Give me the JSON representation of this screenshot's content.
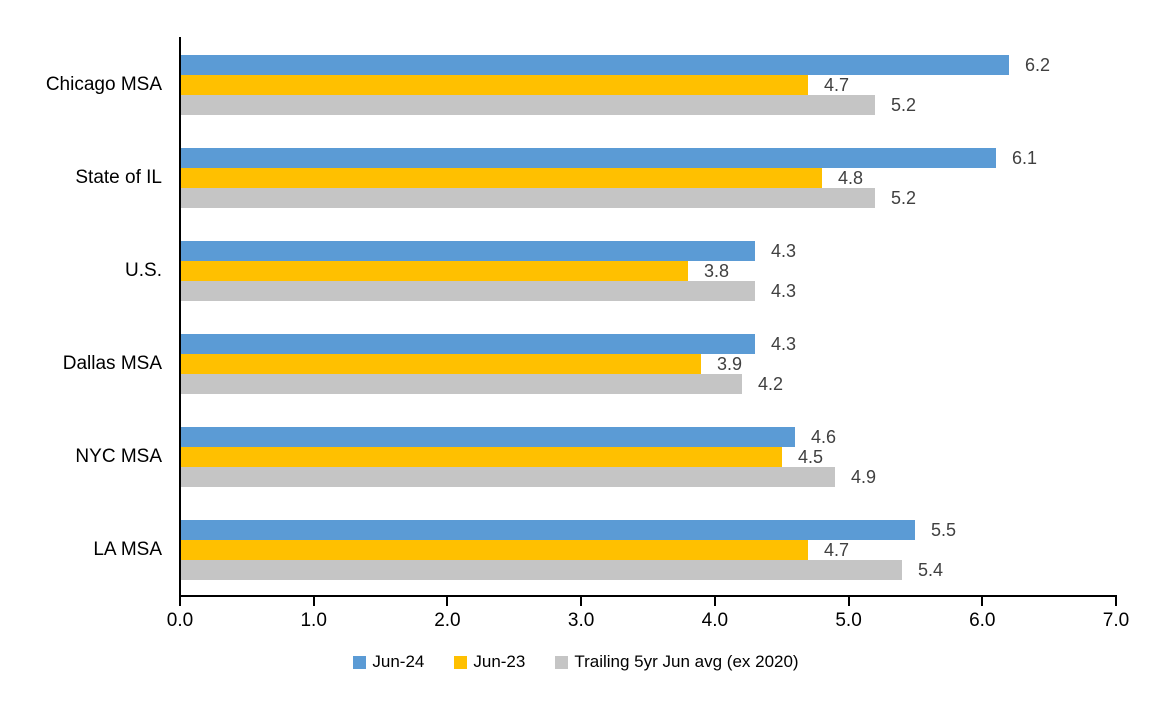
{
  "chart_data": {
    "type": "bar",
    "orientation": "horizontal",
    "title": "",
    "categories": [
      "Chicago MSA",
      "State of IL",
      "U.S.",
      "Dallas MSA",
      "NYC MSA",
      "LA MSA"
    ],
    "series": [
      {
        "name": "Jun-24",
        "color": "#5B9BD5",
        "values": [
          6.2,
          6.1,
          4.3,
          4.3,
          4.6,
          5.5
        ]
      },
      {
        "name": "Jun-23",
        "color": "#FFC000",
        "values": [
          4.7,
          4.8,
          3.8,
          3.9,
          4.5,
          4.7
        ]
      },
      {
        "name": "Trailing 5yr Jun avg (ex 2020)",
        "color": "#C5C5C5",
        "values": [
          5.2,
          5.2,
          4.3,
          4.2,
          4.9,
          5.4
        ]
      }
    ],
    "xlim": [
      0,
      7
    ],
    "x_tick_labels": [
      "0.0",
      "1.0",
      "2.0",
      "3.0",
      "4.0",
      "5.0",
      "6.0",
      "7.0"
    ],
    "grid": false,
    "value_labels": true,
    "legend_position": "bottom",
    "colors": {
      "axis": "#000000",
      "value_label": "#404040",
      "tick_label": "#000000",
      "category_label": "#000000",
      "background": "#ffffff"
    }
  }
}
